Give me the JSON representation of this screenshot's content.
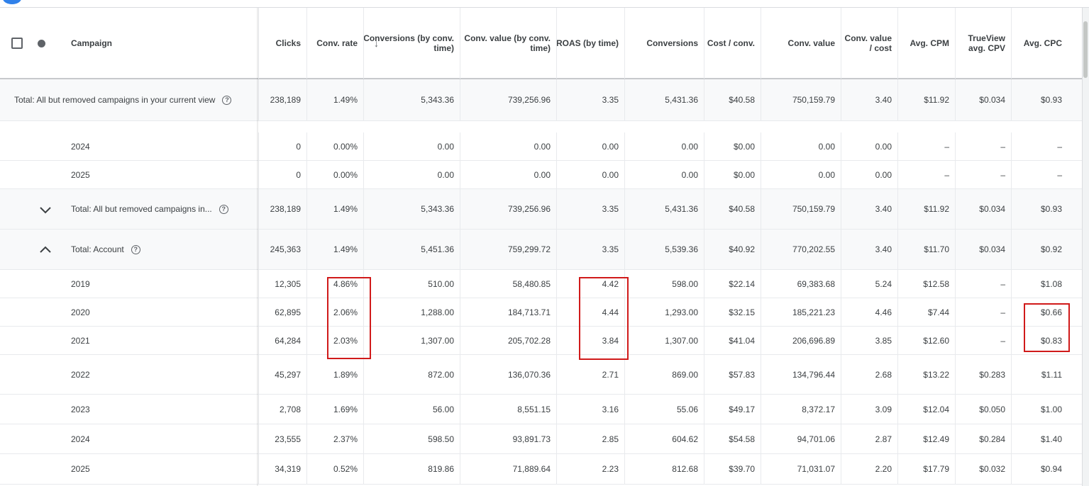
{
  "header": {
    "campaign": "Campaign",
    "columns": [
      "Clicks",
      "Conv. rate",
      "Conversions (by conv. time)",
      "Conv. value (by conv. time)",
      "ROAS (by time)",
      "Conversions",
      "Cost / conv.",
      "Conv. value",
      "Conv. value / cost",
      "Avg. CPM",
      "TrueView avg. CPV",
      "Avg. CPC"
    ]
  },
  "rows": [
    {
      "label": "Total: All but removed campaigns in your current view",
      "type": "total",
      "values": [
        "238,189",
        "1.49%",
        "5,343.36",
        "739,256.96",
        "3.35",
        "5,431.36",
        "$40.58",
        "750,159.79",
        "3.40",
        "$11.92",
        "$0.034",
        "$0.93"
      ]
    },
    {
      "label": "2024",
      "type": "year",
      "values": [
        "0",
        "0.00%",
        "0.00",
        "0.00",
        "0.00",
        "0.00",
        "$0.00",
        "0.00",
        "0.00",
        "–",
        "–",
        "–"
      ]
    },
    {
      "label": "2025",
      "type": "year",
      "values": [
        "0",
        "0.00%",
        "0.00",
        "0.00",
        "0.00",
        "0.00",
        "$0.00",
        "0.00",
        "0.00",
        "–",
        "–",
        "–"
      ]
    },
    {
      "label": "Total: All but removed campaigns in...",
      "type": "group-collapsed",
      "values": [
        "238,189",
        "1.49%",
        "5,343.36",
        "739,256.96",
        "3.35",
        "5,431.36",
        "$40.58",
        "750,159.79",
        "3.40",
        "$11.92",
        "$0.034",
        "$0.93"
      ]
    },
    {
      "label": "Total: Account",
      "type": "group-expanded",
      "values": [
        "245,363",
        "1.49%",
        "5,451.36",
        "759,299.72",
        "3.35",
        "5,539.36",
        "$40.92",
        "770,202.55",
        "3.40",
        "$11.70",
        "$0.034",
        "$0.92"
      ]
    },
    {
      "label": "2019",
      "type": "year",
      "values": [
        "12,305",
        "4.86%",
        "510.00",
        "58,480.85",
        "4.42",
        "598.00",
        "$22.14",
        "69,383.68",
        "5.24",
        "$12.58",
        "–",
        "$1.08"
      ]
    },
    {
      "label": "2020",
      "type": "year",
      "values": [
        "62,895",
        "2.06%",
        "1,288.00",
        "184,713.71",
        "4.44",
        "1,293.00",
        "$32.15",
        "185,221.23",
        "4.46",
        "$7.44",
        "–",
        "$0.66"
      ]
    },
    {
      "label": "2021",
      "type": "year",
      "values": [
        "64,284",
        "2.03%",
        "1,307.00",
        "205,702.28",
        "3.84",
        "1,307.00",
        "$41.04",
        "206,696.89",
        "3.85",
        "$12.60",
        "–",
        "$0.83"
      ]
    },
    {
      "label": "2022",
      "type": "year",
      "values": [
        "45,297",
        "1.89%",
        "872.00",
        "136,070.36",
        "2.71",
        "869.00",
        "$57.83",
        "134,796.44",
        "2.68",
        "$13.22",
        "$0.283",
        "$1.11"
      ]
    },
    {
      "label": "2023",
      "type": "year",
      "values": [
        "2,708",
        "1.69%",
        "56.00",
        "8,551.15",
        "3.16",
        "55.06",
        "$49.17",
        "8,372.17",
        "3.09",
        "$12.04",
        "$0.050",
        "$1.00"
      ]
    },
    {
      "label": "2024",
      "type": "year",
      "values": [
        "23,555",
        "2.37%",
        "598.50",
        "93,891.73",
        "2.85",
        "604.62",
        "$54.58",
        "94,701.06",
        "2.87",
        "$12.49",
        "$0.284",
        "$1.40"
      ]
    },
    {
      "label": "2025",
      "type": "year",
      "values": [
        "34,319",
        "0.52%",
        "819.86",
        "71,889.64",
        "2.23",
        "812.68",
        "$39.70",
        "71,031.07",
        "2.20",
        "$17.79",
        "$0.032",
        "$0.94"
      ]
    }
  ],
  "colors": {
    "highlight": "#d01a1a",
    "shaded": "#f8f9fa",
    "text": "#3c4043"
  }
}
